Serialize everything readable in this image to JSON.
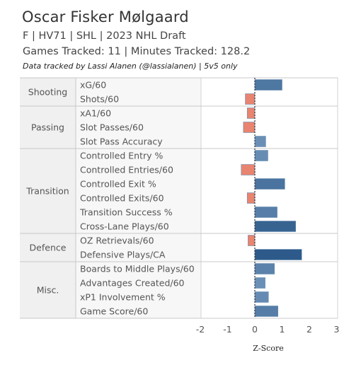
{
  "header": {
    "title": "Oscar Fisker Mølgaard",
    "subtitle": "F | HV71 | SHL | 2023 NHL Draft",
    "games_line": "Games Tracked: 11 | Minutes Tracked: 128.2",
    "note": "Data tracked by Lassi Alanen (@lassialanen) | 5v5 only"
  },
  "colors": {
    "negative": "#e8846f",
    "positive_light": "#a7c4e2",
    "positive_dark": "#2d5a8a",
    "grid": "#d3d3d3",
    "label_bg": "#f0f0f0"
  },
  "chart_data": {
    "type": "bar",
    "orientation": "horizontal",
    "xlabel": "Z-Score",
    "xlim": [
      -2,
      3
    ],
    "xticks": [
      "-2",
      "-1",
      "0",
      "1",
      "2",
      "3"
    ],
    "groups": [
      {
        "name": "Shooting",
        "metrics": [
          {
            "label": "xG/60",
            "value": 1.0
          },
          {
            "label": "Shots/60",
            "value": -0.35
          }
        ]
      },
      {
        "name": "Passing",
        "metrics": [
          {
            "label": "xA1/60",
            "value": -0.28
          },
          {
            "label": "Slot Passes/60",
            "value": -0.42
          },
          {
            "label": "Slot Pass Accuracy",
            "value": 0.4
          }
        ]
      },
      {
        "name": "Transition",
        "metrics": [
          {
            "label": "Controlled Entry %",
            "value": 0.48
          },
          {
            "label": "Controlled Entries/60",
            "value": -0.5
          },
          {
            "label": "Controlled Exit %",
            "value": 1.1
          },
          {
            "label": "Controlled Exits/60",
            "value": -0.28
          },
          {
            "label": "Transition Success %",
            "value": 0.82
          },
          {
            "label": "Cross-Lane Plays/60",
            "value": 1.5
          }
        ]
      },
      {
        "name": "Defence",
        "metrics": [
          {
            "label": "OZ Retrievals/60",
            "value": -0.25
          },
          {
            "label": "Defensive Plays/CA",
            "value": 1.72
          }
        ]
      },
      {
        "name": "Misc.",
        "metrics": [
          {
            "label": "Boards to Middle Plays/60",
            "value": 0.72
          },
          {
            "label": "Advantages Created/60",
            "value": 0.38
          },
          {
            "label": "xP1 Involvement %",
            "value": 0.5
          },
          {
            "label": "Game Score/60",
            "value": 0.85
          }
        ]
      }
    ]
  }
}
